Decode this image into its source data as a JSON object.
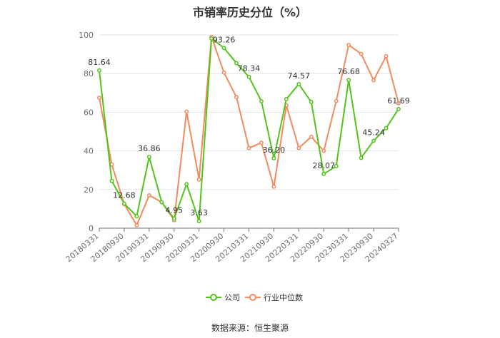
{
  "chart_data": {
    "type": "line",
    "title": "市销率历史分位（%）",
    "source": "数据来源：恒生聚源",
    "ylim": [
      0,
      100
    ],
    "yticks": [
      0,
      20,
      40,
      60,
      80,
      100
    ],
    "x_tick_labels": [
      "20180331",
      "20180930",
      "20190331",
      "20190930",
      "20200331",
      "20200930",
      "20210331",
      "20210930",
      "20220331",
      "20220930",
      "20230331",
      "20230930",
      "20240327"
    ],
    "x": [
      "20180331",
      "20180630",
      "20180930",
      "20181231",
      "20190331",
      "20190630",
      "20190930",
      "20191231",
      "20200331",
      "20200630",
      "20200930",
      "20201231",
      "20210331",
      "20210630",
      "20210930",
      "20211231",
      "20220331",
      "20220630",
      "20220930",
      "20221231",
      "20230331",
      "20230630",
      "20230930",
      "20231231",
      "20240327"
    ],
    "series": [
      {
        "name": "公司",
        "color": "#52c41a",
        "values": [
          81.64,
          24.5,
          12.68,
          6.2,
          36.86,
          13.5,
          4.95,
          22.8,
          3.63,
          98.2,
          93.26,
          85.4,
          78.34,
          65.7,
          36.2,
          66.8,
          74.57,
          65.3,
          28.07,
          32.1,
          76.68,
          36.4,
          45.24,
          51.8,
          61.69
        ],
        "labels": {
          "0": "81.64",
          "2": "12.68",
          "4": "36.86",
          "6": "4.95",
          "8": "3.63",
          "10": "93.26",
          "12": "78.34",
          "14": "36.20",
          "16": "74.57",
          "18": "28.07",
          "20": "76.68",
          "22": "45.24",
          "24": "61.69"
        }
      },
      {
        "name": "行业中位数",
        "color": "#f5895e",
        "values": [
          67.5,
          33.0,
          12.5,
          1.5,
          17.0,
          13.5,
          4.2,
          60.3,
          25.2,
          99.0,
          80.5,
          67.8,
          41.5,
          44.2,
          21.5,
          63.6,
          41.5,
          47.3,
          40.0,
          65.8,
          94.8,
          90.2,
          76.6,
          89.0,
          64.7
        ]
      }
    ]
  }
}
